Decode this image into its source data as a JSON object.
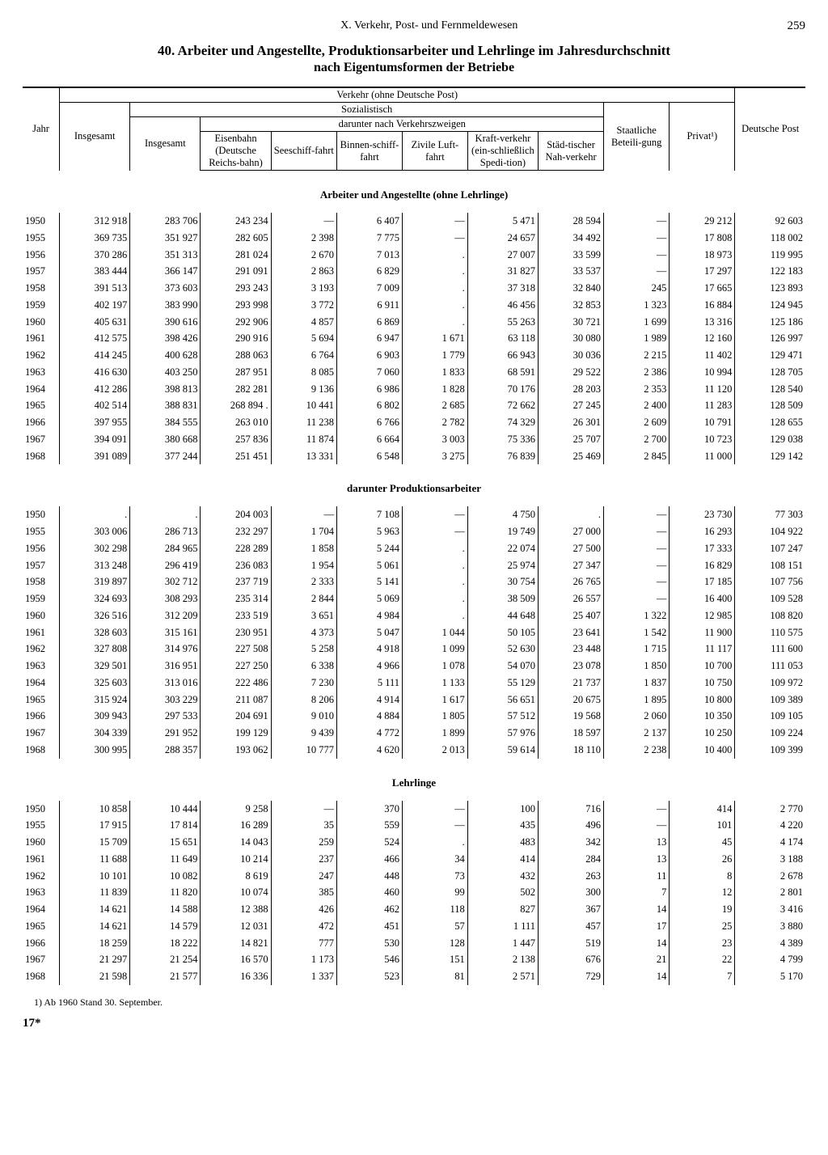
{
  "chapter": "X. Verkehr, Post- und Fernmeldewesen",
  "pageNumber": "259",
  "title1": "40. Arbeiter und Angestellte, Produktionsarbeiter und Lehrlinge im Jahresdurchschnitt",
  "title2": "nach Eigentumsformen der Betriebe",
  "footnote": "1) Ab 1960 Stand 30. September.",
  "pageFoot": "17*",
  "head": {
    "jahr": "Jahr",
    "verkehr": "Verkehr (ohne Deutsche Post)",
    "sozialistisch": "Sozialistisch",
    "darunter": "darunter nach Verkehrszweigen",
    "insgesamt": "Insgesamt",
    "eisenbahn": "Eisenbahn (Deutsche Reichs-bahn)",
    "seeschiff": "Seeschiff-fahrt",
    "binnen": "Binnen-schiff-fahrt",
    "luft": "Zivile Luft-fahrt",
    "kraft": "Kraft-verkehr (ein-schließlich Spedi-tion)",
    "nah": "Städ-tischer Nah-verkehr",
    "staat": "Staatliche Beteili-gung",
    "privat": "Privat¹)",
    "post": "Deutsche Post"
  },
  "sections": [
    {
      "title": "Arbeiter und Angestellte (ohne Lehrlinge)",
      "rows": [
        [
          "1950",
          "312 918",
          "283 706",
          "243 234",
          "—",
          "6 407",
          "—",
          "5 471",
          "28 594",
          "—",
          "29 212",
          "92 603"
        ],
        [
          "1955",
          "369 735",
          "351 927",
          "282 605",
          "2 398",
          "7 775",
          "—",
          "24 657",
          "34 492",
          "—",
          "17 808",
          "118 002"
        ],
        [
          "1956",
          "370 286",
          "351 313",
          "281 024",
          "2 670",
          "7 013",
          ".",
          "27 007",
          "33 599",
          "—",
          "18 973",
          "119 995"
        ],
        [
          "1957",
          "383 444",
          "366 147",
          "291 091",
          "2 863",
          "6 829",
          ".",
          "31 827",
          "33 537",
          "—",
          "17 297",
          "122 183"
        ],
        [
          "1958",
          "391 513",
          "373 603",
          "293 243",
          "3 193",
          "7 009",
          ".",
          "37 318",
          "32 840",
          "245",
          "17 665",
          "123 893"
        ],
        [
          "1959",
          "402 197",
          "383 990",
          "293 998",
          "3 772",
          "6 911",
          ".",
          "46 456",
          "32 853",
          "1 323",
          "16 884",
          "124 945"
        ],
        [
          "1960",
          "405 631",
          "390 616",
          "292 906",
          "4 857",
          "6 869",
          ".",
          "55 263",
          "30 721",
          "1 699",
          "13 316",
          "125 186"
        ],
        [
          "1961",
          "412 575",
          "398 426",
          "290 916",
          "5 694",
          "6 947",
          "1 671",
          "63 118",
          "30 080",
          "1 989",
          "12 160",
          "126 997"
        ],
        [
          "1962",
          "414 245",
          "400 628",
          "288 063",
          "6 764",
          "6 903",
          "1 779",
          "66 943",
          "30 036",
          "2 215",
          "11 402",
          "129 471"
        ],
        [
          "1963",
          "416 630",
          "403 250",
          "287 951",
          "8 085",
          "7 060",
          "1 833",
          "68 591",
          "29 522",
          "2 386",
          "10 994",
          "128 705"
        ],
        [
          "1964",
          "412 286",
          "398 813",
          "282 281",
          "9 136",
          "6 986",
          "1 828",
          "70 176",
          "28 203",
          "2 353",
          "11 120",
          "128 540"
        ],
        [
          "1965",
          "402 514",
          "388 831",
          "268 894 .",
          "10 441",
          "6 802",
          "2 685",
          "72 662",
          "27 245",
          "2 400",
          "11 283",
          "128 509"
        ],
        [
          "1966",
          "397 955",
          "384 555",
          "263 010",
          "11 238",
          "6 766",
          "2 782",
          "74 329",
          "26 301",
          "2 609",
          "10 791",
          "128 655"
        ],
        [
          "1967",
          "394 091",
          "380 668",
          "257 836",
          "11 874",
          "6 664",
          "3 003",
          "75 336",
          "25 707",
          "2 700",
          "10 723",
          "129 038"
        ],
        [
          "1968",
          "391 089",
          "377 244",
          "251 451",
          "13 331",
          "6 548",
          "3 275",
          "76 839",
          "25 469",
          "2 845",
          "11 000",
          "129 142"
        ]
      ]
    },
    {
      "title": "darunter Produktionsarbeiter",
      "rows": [
        [
          "1950",
          ".",
          ".",
          "204 003",
          "—",
          "7 108",
          "—",
          "4 750",
          ".",
          "—",
          "23 730",
          "77 303"
        ],
        [
          "1955",
          "303 006",
          "286 713",
          "232 297",
          "1 704",
          "5 963",
          "—",
          "19 749",
          "27 000",
          "—",
          "16 293",
          "104 922"
        ],
        [
          "1956",
          "302 298",
          "284 965",
          "228 289",
          "1 858",
          "5 244",
          ".",
          "22 074",
          "27 500",
          "—",
          "17 333",
          "107 247"
        ],
        [
          "1957",
          "313 248",
          "296 419",
          "236 083",
          "1 954",
          "5 061",
          ".",
          "25 974",
          "27 347",
          "—",
          "16 829",
          "108 151"
        ],
        [
          "1958",
          "319 897",
          "302 712",
          "237 719",
          "2 333",
          "5 141",
          ".",
          "30 754",
          "26 765",
          "—",
          "17 185",
          "107 756"
        ],
        [
          "1959",
          "324 693",
          "308 293",
          "235 314",
          "2 844",
          "5 069",
          ".",
          "38 509",
          "26 557",
          "—",
          "16 400",
          "109 528"
        ],
        [
          "1960",
          "326 516",
          "312 209",
          "233 519",
          "3 651",
          "4 984",
          ".",
          "44 648",
          "25 407",
          "1 322",
          "12 985",
          "108 820"
        ],
        [
          "1961",
          "328 603",
          "315 161",
          "230 951",
          "4 373",
          "5 047",
          "1 044",
          "50 105",
          "23 641",
          "1 542",
          "11 900",
          "110 575"
        ],
        [
          "1962",
          "327 808",
          "314 976",
          "227 508",
          "5 258",
          "4 918",
          "1 099",
          "52 630",
          "23 448",
          "1 715",
          "11 117",
          "111 600"
        ],
        [
          "1963",
          "329 501",
          "316 951",
          "227 250",
          "6 338",
          "4 966",
          "1 078",
          "54 070",
          "23 078",
          "1 850",
          "10 700",
          "111 053"
        ],
        [
          "1964",
          "325 603",
          "313 016",
          "222 486",
          "7 230",
          "5 111",
          "1 133",
          "55 129",
          "21 737",
          "1 837",
          "10 750",
          "109 972"
        ],
        [
          "1965",
          "315 924",
          "303 229",
          "211 087",
          "8 206",
          "4 914",
          "1 617",
          "56 651",
          "20 675",
          "1 895",
          "10 800",
          "109 389"
        ],
        [
          "1966",
          "309 943",
          "297 533",
          "204 691",
          "9 010",
          "4 884",
          "1 805",
          "57 512",
          "19 568",
          "2 060",
          "10 350",
          "109 105"
        ],
        [
          "1967",
          "304 339",
          "291 952",
          "199 129",
          "9 439",
          "4 772",
          "1 899",
          "57 976",
          "18 597",
          "2 137",
          "10 250",
          "109 224"
        ],
        [
          "1968",
          "300 995",
          "288 357",
          "193 062",
          "10 777",
          "4 620",
          "2 013",
          "59 614",
          "18 110",
          "2 238",
          "10 400",
          "109 399"
        ]
      ]
    },
    {
      "title": "Lehrlinge",
      "rows": [
        [
          "1950",
          "10 858",
          "10 444",
          "9 258",
          "—",
          "370",
          "—",
          "100",
          "716",
          "—",
          "414",
          "2 770"
        ],
        [
          "1955",
          "17 915",
          "17 814",
          "16 289",
          "35",
          "559",
          "—",
          "435",
          "496",
          "—",
          "101",
          "4 220"
        ],
        [
          "1960",
          "15 709",
          "15 651",
          "14 043",
          "259",
          "524",
          ".",
          "483",
          "342",
          "13",
          "45",
          "4 174"
        ],
        [
          "1961",
          "11 688",
          "11 649",
          "10 214",
          "237",
          "466",
          "34",
          "414",
          "284",
          "13",
          "26",
          "3 188"
        ],
        [
          "1962",
          "10 101",
          "10 082",
          "8 619",
          "247",
          "448",
          "73",
          "432",
          "263",
          "11",
          "8",
          "2 678"
        ],
        [
          "1963",
          "11 839",
          "11 820",
          "10 074",
          "385",
          "460",
          "99",
          "502",
          "300",
          "7",
          "12",
          "2 801"
        ],
        [
          "1964",
          "14 621",
          "14 588",
          "12 388",
          "426",
          "462",
          "118",
          "827",
          "367",
          "14",
          "19",
          "3 416"
        ],
        [
          "1965",
          "14 621",
          "14 579",
          "12 031",
          "472",
          "451",
          "57",
          "1 111",
          "457",
          "17",
          "25",
          "3 880"
        ],
        [
          "1966",
          "18 259",
          "18 222",
          "14 821",
          "777",
          "530",
          "128",
          "1 447",
          "519",
          "14",
          "23",
          "4 389"
        ],
        [
          "1967",
          "21 297",
          "21 254",
          "16 570",
          "1 173",
          "546",
          "151",
          "2 138",
          "676",
          "21",
          "22",
          "4 799"
        ],
        [
          "1968",
          "21 598",
          "21 577",
          "16 336",
          "1 337",
          "523",
          "81",
          "2 571",
          "729",
          "14",
          "7",
          "5 170"
        ]
      ]
    }
  ]
}
